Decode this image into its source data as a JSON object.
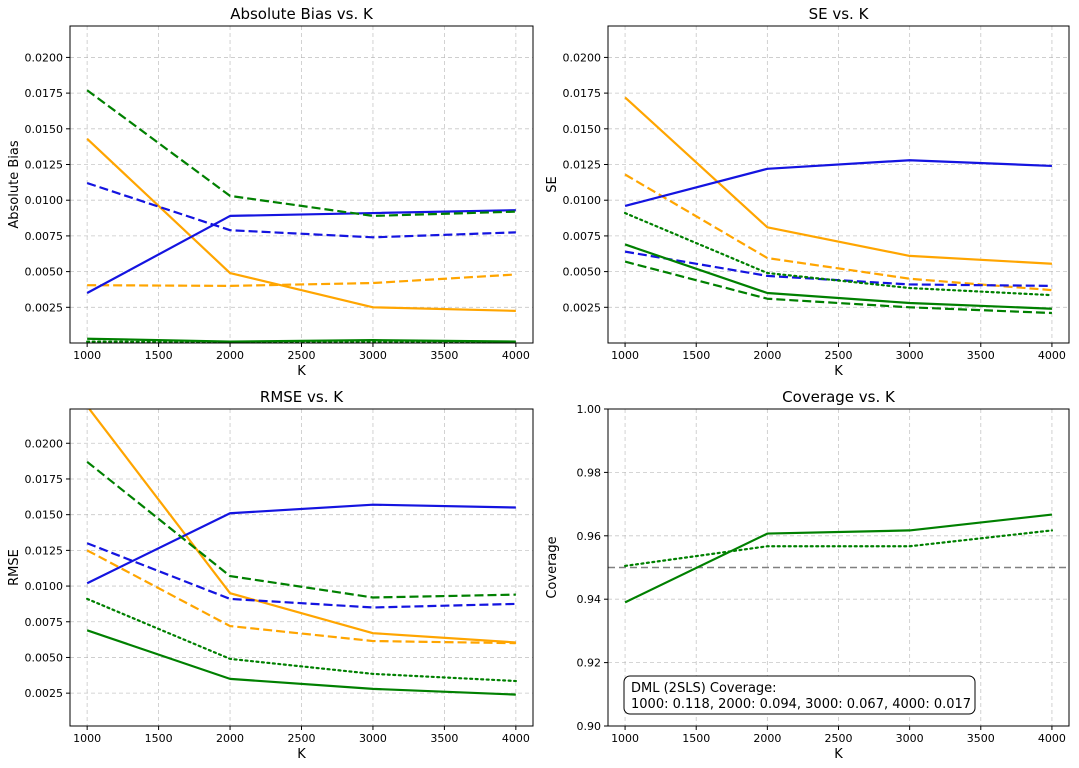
{
  "chart_data": [
    {
      "type": "line",
      "title": "Absolute Bias vs. K",
      "xlabel": "K",
      "ylabel": "Absolute Bias",
      "xlim": [
        880,
        4120
      ],
      "ylim": [
        0.0,
        0.0222
      ],
      "xticks": [
        1000,
        1500,
        2000,
        2500,
        3000,
        3500,
        4000
      ],
      "yticks": [
        0.0025,
        0.005,
        0.0075,
        0.01,
        0.0125,
        0.015,
        0.0175,
        0.02
      ],
      "ytick_labels": [
        "0.0025",
        "0.0050",
        "0.0075",
        "0.0100",
        "0.0125",
        "0.0150",
        "0.0175",
        "0.0200"
      ],
      "grid": true,
      "x": [
        1000,
        2000,
        3000,
        4000
      ],
      "series": [
        {
          "color": "#ffa500",
          "style": "solid",
          "values": [
            0.0143,
            0.0049,
            0.0025,
            0.00225
          ]
        },
        {
          "color": "#ffa500",
          "style": "dashed",
          "values": [
            0.00405,
            0.004,
            0.0042,
            0.0048
          ]
        },
        {
          "color": "#1414e0",
          "style": "solid",
          "values": [
            0.0035,
            0.0089,
            0.0091,
            0.0093
          ]
        },
        {
          "color": "#1414e0",
          "style": "dashed",
          "values": [
            0.0112,
            0.0079,
            0.0074,
            0.00775
          ]
        },
        {
          "color": "#008000",
          "style": "solid",
          "values": [
            0.0003,
            0.0001,
            0.0002,
            0.0001
          ]
        },
        {
          "color": "#008000",
          "style": "dashed",
          "values": [
            0.0177,
            0.0103,
            0.0089,
            0.0092
          ]
        },
        {
          "color": "#008000",
          "style": "dotted",
          "values": [
            0.0001,
            5e-05,
            0.0001,
            5e-05
          ]
        }
      ]
    },
    {
      "type": "line",
      "title": "SE vs. K",
      "xlabel": "K",
      "ylabel": "SE",
      "xlim": [
        880,
        4120
      ],
      "ylim": [
        0.0,
        0.0222
      ],
      "xticks": [
        1000,
        1500,
        2000,
        2500,
        3000,
        3500,
        4000
      ],
      "yticks": [
        0.0025,
        0.005,
        0.0075,
        0.01,
        0.0125,
        0.015,
        0.0175,
        0.02
      ],
      "ytick_labels": [
        "0.0025",
        "0.0050",
        "0.0075",
        "0.0100",
        "0.0125",
        "0.0150",
        "0.0175",
        "0.0200"
      ],
      "grid": true,
      "x": [
        1000,
        2000,
        3000,
        4000
      ],
      "series": [
        {
          "color": "#ffa500",
          "style": "solid",
          "values": [
            0.0172,
            0.0081,
            0.0061,
            0.00555
          ]
        },
        {
          "color": "#ffa500",
          "style": "dashed",
          "values": [
            0.0118,
            0.00595,
            0.0045,
            0.0037
          ]
        },
        {
          "color": "#1414e0",
          "style": "solid",
          "values": [
            0.0096,
            0.0122,
            0.0128,
            0.0124
          ]
        },
        {
          "color": "#1414e0",
          "style": "dashed",
          "values": [
            0.0064,
            0.0047,
            0.0041,
            0.004
          ]
        },
        {
          "color": "#008000",
          "style": "solid",
          "values": [
            0.0069,
            0.0035,
            0.0028,
            0.0024
          ]
        },
        {
          "color": "#008000",
          "style": "dashed",
          "values": [
            0.0057,
            0.0031,
            0.0025,
            0.0021
          ]
        },
        {
          "color": "#008000",
          "style": "dotted",
          "values": [
            0.0091,
            0.0049,
            0.00385,
            0.00335
          ]
        }
      ]
    },
    {
      "type": "line",
      "title": "RMSE vs. K",
      "xlabel": "K",
      "ylabel": "RMSE",
      "xlim": [
        880,
        4120
      ],
      "ylim": [
        0.0002,
        0.0224
      ],
      "xticks": [
        1000,
        1500,
        2000,
        2500,
        3000,
        3500,
        4000
      ],
      "yticks": [
        0.0025,
        0.005,
        0.0075,
        0.01,
        0.0125,
        0.015,
        0.0175,
        0.02
      ],
      "ytick_labels": [
        "0.0025",
        "0.0050",
        "0.0075",
        "0.0100",
        "0.0125",
        "0.0150",
        "0.0175",
        "0.0200"
      ],
      "grid": true,
      "x": [
        1000,
        2000,
        3000,
        4000
      ],
      "series": [
        {
          "color": "#ffa500",
          "style": "solid",
          "values": [
            0.0226,
            0.0095,
            0.0067,
            0.00605
          ]
        },
        {
          "color": "#ffa500",
          "style": "dashed",
          "values": [
            0.0125,
            0.0072,
            0.00615,
            0.006
          ]
        },
        {
          "color": "#1414e0",
          "style": "solid",
          "values": [
            0.0102,
            0.0151,
            0.0157,
            0.0155
          ]
        },
        {
          "color": "#1414e0",
          "style": "dashed",
          "values": [
            0.013,
            0.0091,
            0.0085,
            0.00875
          ]
        },
        {
          "color": "#008000",
          "style": "solid",
          "values": [
            0.0069,
            0.0035,
            0.0028,
            0.0024
          ]
        },
        {
          "color": "#008000",
          "style": "dashed",
          "values": [
            0.0187,
            0.0107,
            0.0092,
            0.0094
          ]
        },
        {
          "color": "#008000",
          "style": "dotted",
          "values": [
            0.0091,
            0.0049,
            0.00385,
            0.00335
          ]
        }
      ]
    },
    {
      "type": "line",
      "title": "Coverage vs. K",
      "xlabel": "K",
      "ylabel": "Coverage",
      "xlim": [
        880,
        4120
      ],
      "ylim": [
        0.9,
        1.0
      ],
      "xticks": [
        1000,
        1500,
        2000,
        2500,
        3000,
        3500,
        4000
      ],
      "yticks": [
        0.9,
        0.92,
        0.94,
        0.96,
        0.98,
        1.0
      ],
      "ytick_labels": [
        "0.90",
        "0.92",
        "0.94",
        "0.96",
        "0.98",
        "1.00"
      ],
      "grid": true,
      "x": [
        1000,
        2000,
        3000,
        4000
      ],
      "reference_line": {
        "y": 0.95,
        "color": "#808080",
        "style": "dashed"
      },
      "series": [
        {
          "color": "#008000",
          "style": "solid",
          "values": [
            0.939,
            0.9607,
            0.9617,
            0.9667
          ]
        },
        {
          "color": "#008000",
          "style": "dotted",
          "values": [
            0.9505,
            0.9567,
            0.9567,
            0.9617
          ]
        }
      ],
      "annotation": {
        "line1": "DML (2SLS) Coverage:",
        "line2": "1000: 0.118, 2000: 0.094, 3000: 0.067, 4000: 0.017"
      }
    }
  ]
}
